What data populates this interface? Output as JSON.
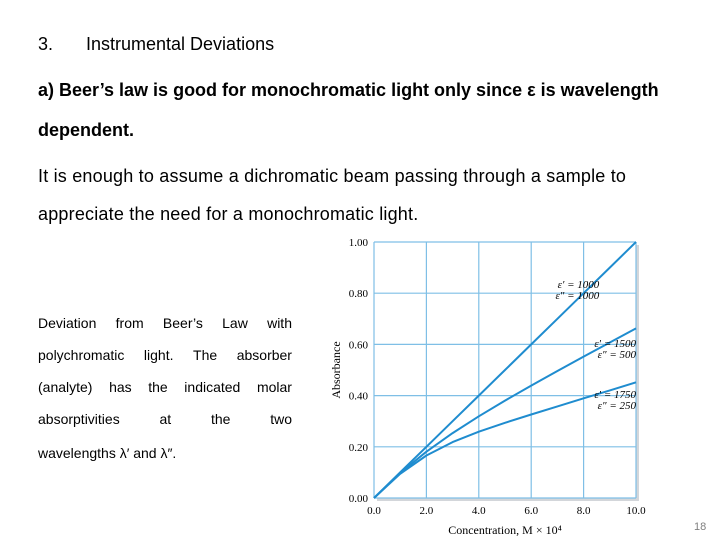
{
  "slide": {
    "heading_number": "3.",
    "heading_text": "Instrumental Deviations",
    "point_a_line1": "a) Beer’s law is good for monochromatic light only since ε is wavelength",
    "point_a_line2": "dependent.",
    "para_line1": "It is enough to assume a dichromatic beam passing through a sample to",
    "para_line2": "appreciate the need for a monochromatic light.",
    "caption": {
      "line1": [
        "Deviation",
        "from",
        "Beer’s",
        "Law",
        "with"
      ],
      "line2": [
        "polychromatic",
        "light.",
        "The",
        "absorber"
      ],
      "line3": [
        "(analyte)",
        "has",
        "the",
        "indicated",
        "molar"
      ],
      "line4": [
        "absorptivities",
        "at",
        "the",
        "two"
      ],
      "line5": "wavelengths λ′ and λ″."
    },
    "page_number": "18"
  },
  "colors": {
    "grid": "#7fbfe6",
    "curve": "#1f8ccf",
    "text": "#000000",
    "page_number": "#7f7f7f"
  },
  "chart_data": {
    "type": "line",
    "xlabel": "Concentration, M × 10⁴",
    "ylabel": "Absorbance",
    "xlim": [
      0,
      10
    ],
    "ylim": [
      0,
      1
    ],
    "x_ticks": [
      "0.0",
      "2.0",
      "4.0",
      "6.0",
      "8.0",
      "10.0"
    ],
    "y_ticks": [
      "0.00",
      "0.20",
      "0.40",
      "0.60",
      "0.80",
      "1.00"
    ],
    "grid": true,
    "series": [
      {
        "annotation": [
          "ε′ = 1000",
          "ε″ = 1000"
        ],
        "x": [
          0,
          1,
          2,
          3,
          4,
          5,
          6,
          7,
          8,
          9,
          10
        ],
        "values": [
          0,
          0.1,
          0.2,
          0.3,
          0.4,
          0.5,
          0.6,
          0.7,
          0.8,
          0.9,
          1.0
        ]
      },
      {
        "annotation": [
          "ε′ = 1500",
          "ε″ = 500"
        ],
        "x": [
          0,
          1,
          2,
          3,
          4,
          5,
          6,
          7,
          8,
          9,
          10
        ],
        "values": [
          0,
          0.0976,
          0.1808,
          0.2535,
          0.3192,
          0.3806,
          0.4392,
          0.4962,
          0.5522,
          0.6076,
          0.6626
        ]
      },
      {
        "annotation": [
          "ε′ = 1750",
          "ε″ = 250"
        ],
        "x": [
          0,
          1,
          2,
          3,
          4,
          5,
          6,
          7,
          8,
          9,
          10
        ],
        "values": [
          0,
          0.0945,
          0.1659,
          0.2185,
          0.2591,
          0.2939,
          0.3263,
          0.3579,
          0.3893,
          0.4205,
          0.4518
        ]
      }
    ]
  }
}
